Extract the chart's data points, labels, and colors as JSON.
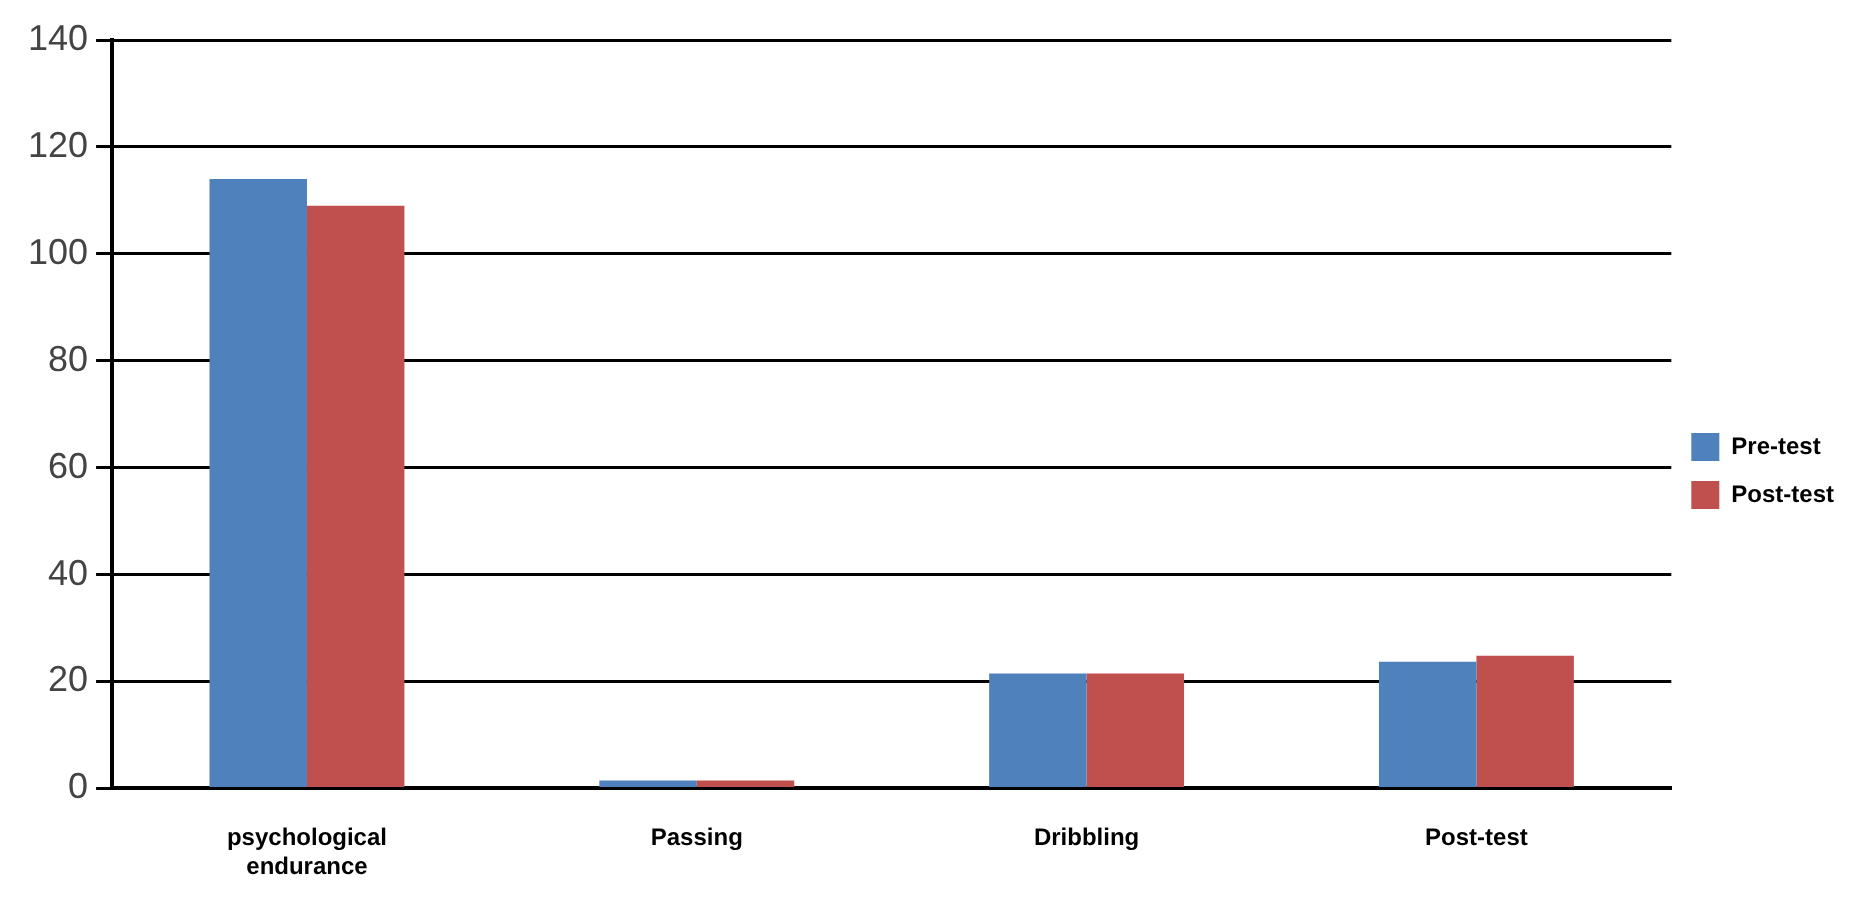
{
  "chart_data": {
    "type": "bar",
    "categories": [
      "psychological endurance",
      "Passing",
      "Dribbling",
      "Post-test"
    ],
    "series": [
      {
        "name": "Pre-test",
        "color": "#4f81bd",
        "values": [
          114,
          1.5,
          21.5,
          23.7
        ]
      },
      {
        "name": "Post-test",
        "color": "#c0504d",
        "values": [
          109,
          1.5,
          21.5,
          24.8
        ]
      }
    ],
    "ylim": [
      0,
      140
    ],
    "yticks": [
      0,
      20,
      40,
      60,
      80,
      100,
      120,
      140
    ],
    "grid": "y",
    "legend": "right"
  }
}
